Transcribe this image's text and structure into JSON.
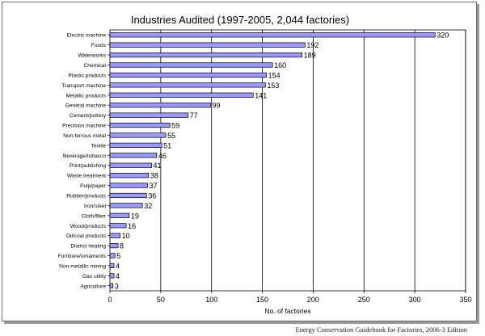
{
  "chart_data": {
    "type": "bar",
    "orientation": "horizontal",
    "title": "Industries Audited (1997-2005, 2,044 factories)",
    "xlabel": "No. of factories",
    "ylabel": "",
    "xlim": [
      0,
      350
    ],
    "xticks": [
      0,
      50,
      100,
      150,
      200,
      250,
      300,
      350
    ],
    "grid": "vertical",
    "bar_color": "#9999ff",
    "categories": [
      "Electric machine",
      "Foods",
      "Waterworks",
      "Chemical",
      "Plastic products",
      "Transport machine",
      "Metallic products",
      "General machine",
      "Cement/pottery",
      "Precision machine",
      "Non-ferrous metal",
      "Textile",
      "Beverage/tobacco",
      "Print/publishing",
      "Waste treatment",
      "Pulp/paper",
      "Rubber/products",
      "Iron/steel",
      "Cloth/fiber",
      "Wood/products",
      "Oil/coal products",
      "District heating",
      "Furniture/ornaments",
      "Non-metallic mining",
      "Gas utility",
      "Agriculture"
    ],
    "values": [
      320,
      192,
      189,
      160,
      154,
      153,
      141,
      99,
      77,
      59,
      55,
      51,
      46,
      41,
      38,
      37,
      36,
      32,
      19,
      16,
      10,
      8,
      5,
      4,
      4,
      3
    ]
  },
  "footer": {
    "source": "Energy Conservation Guidebook for Factories, 2006-3 Edition"
  }
}
